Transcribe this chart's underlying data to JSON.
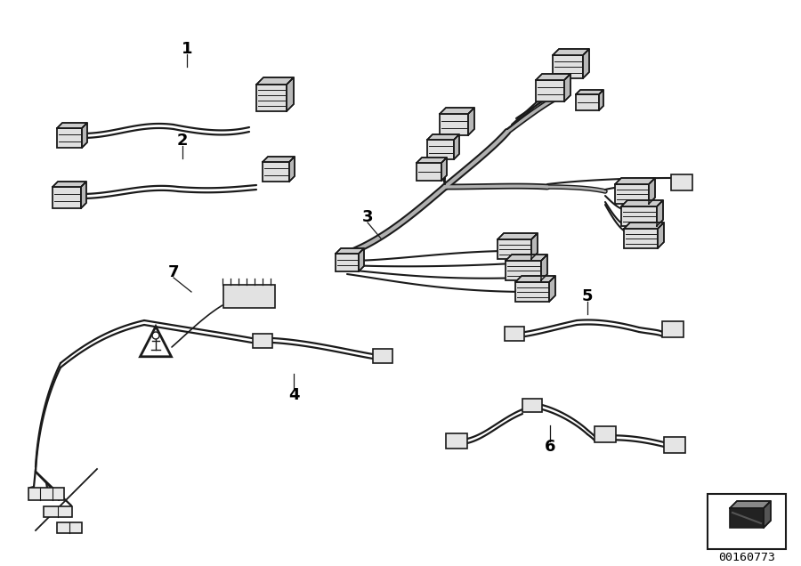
{
  "background_color": "#ffffff",
  "line_color": "#1a1a1a",
  "label_color": "#000000",
  "part_number": "00160773",
  "fig_width": 9.0,
  "fig_height": 6.36,
  "dpi": 100
}
